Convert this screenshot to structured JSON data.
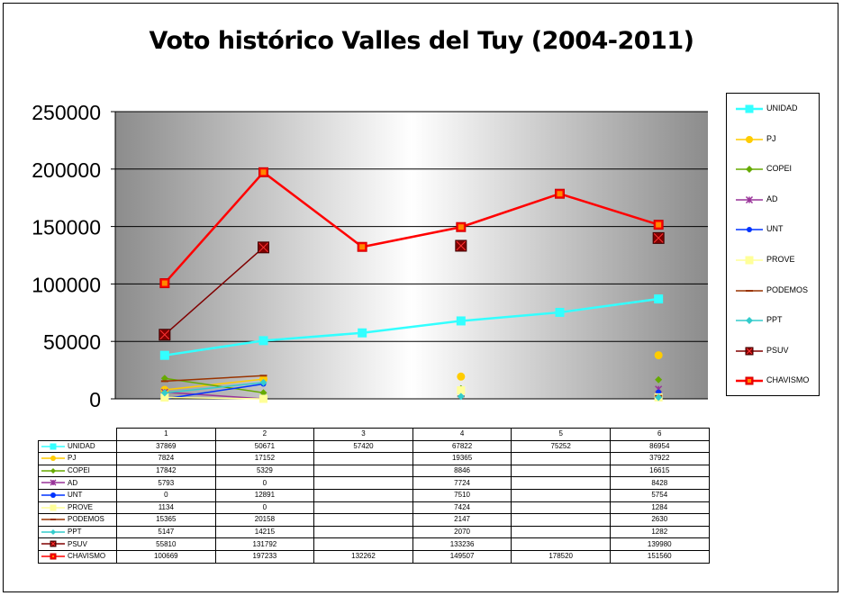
{
  "chart_data": {
    "type": "line",
    "title": "Voto histórico Valles del Tuy (2004-2011)",
    "categories": [
      "1",
      "2",
      "3",
      "4",
      "5",
      "6"
    ],
    "ylim": [
      0,
      250000
    ],
    "yticks": [
      "0",
      "50000",
      "100000",
      "150000",
      "200000",
      "250000"
    ],
    "grid": true,
    "legend_position": "right",
    "series": [
      {
        "name": "UNIDAD",
        "color": "#33ffff",
        "marker": "square",
        "values": [
          37869,
          50671,
          57420,
          67822,
          75252,
          86954
        ],
        "labels": [
          "37869",
          "50671",
          "57420",
          "67822",
          "75252",
          "86954"
        ]
      },
      {
        "name": "PJ",
        "color": "#ffcc00",
        "marker": "circle",
        "values": [
          7824,
          17152,
          null,
          19365,
          null,
          37922
        ],
        "labels": [
          "7824",
          "17152",
          "",
          "19365",
          "",
          "37922"
        ]
      },
      {
        "name": "COPEI",
        "color": "#66aa00",
        "marker": "diamond",
        "values": [
          17842,
          5329,
          null,
          8846,
          null,
          16615
        ],
        "labels": [
          "17842",
          "5329",
          "",
          "8846",
          "",
          "16615"
        ]
      },
      {
        "name": "AD",
        "color": "#993399",
        "marker": "star",
        "values": [
          5793,
          0,
          null,
          7724,
          null,
          8428
        ],
        "labels": [
          "5793",
          "0",
          "",
          "7724",
          "",
          "8428"
        ]
      },
      {
        "name": "UNT",
        "color": "#0033ff",
        "marker": "circle",
        "values": [
          0,
          12891,
          null,
          7510,
          null,
          5754
        ],
        "labels": [
          "0",
          "12891",
          "",
          "7510",
          "",
          "5754"
        ]
      },
      {
        "name": "PROVE",
        "color": "#ffff99",
        "marker": "square",
        "values": [
          1134,
          0,
          null,
          7424,
          null,
          1284
        ],
        "labels": [
          "1134",
          "0",
          "",
          "7424",
          "",
          "1284"
        ]
      },
      {
        "name": "PODEMOS",
        "color": "#993300",
        "marker": "dash",
        "values": [
          15365,
          20158,
          null,
          2147,
          null,
          2630
        ],
        "labels": [
          "15365",
          "20158",
          "",
          "2147",
          "",
          "2630"
        ]
      },
      {
        "name": "PPT",
        "color": "#33cccc",
        "marker": "diamond",
        "values": [
          5147,
          14215,
          null,
          2070,
          null,
          1282
        ],
        "labels": [
          "5147",
          "14215",
          "",
          "2070",
          "",
          "1282"
        ]
      },
      {
        "name": "PSUV",
        "color": "#800000",
        "marker": "xsquare",
        "values": [
          55810,
          131792,
          null,
          133236,
          null,
          139980
        ],
        "labels": [
          "55810",
          "131792",
          "",
          "133236",
          "",
          "139980"
        ]
      },
      {
        "name": "CHAVISMO",
        "color": "#ff0000",
        "marker": "square",
        "values": [
          100669,
          197233,
          132262,
          149507,
          178520,
          151560
        ],
        "labels": [
          "100669",
          "197233",
          "132262",
          "149507",
          "178520",
          "151560"
        ]
      }
    ]
  }
}
